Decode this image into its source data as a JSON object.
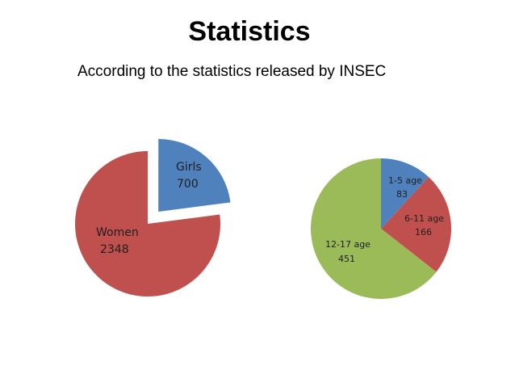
{
  "slide": {
    "title": "Statistics",
    "subtitle": "According to the statistics released by INSEC"
  },
  "chart_data": [
    {
      "type": "pie",
      "exploded": [
        "Girls"
      ],
      "slices": [
        {
          "label": "Girls",
          "value": 700,
          "value_text": "700",
          "color": "#4f81bd"
        },
        {
          "label": "Women",
          "value": 2348,
          "value_text": "2348",
          "color": "#c0504d"
        }
      ]
    },
    {
      "type": "pie",
      "slices": [
        {
          "label": "1-5 age",
          "value": 83,
          "value_text": "83",
          "color": "#4f81bd"
        },
        {
          "label": "6-11 age",
          "value": 166,
          "value_text": "166",
          "color": "#c0504d"
        },
        {
          "label": "12-17 age",
          "value": 451,
          "value_text": "451",
          "color": "#9bbb59"
        }
      ]
    }
  ]
}
